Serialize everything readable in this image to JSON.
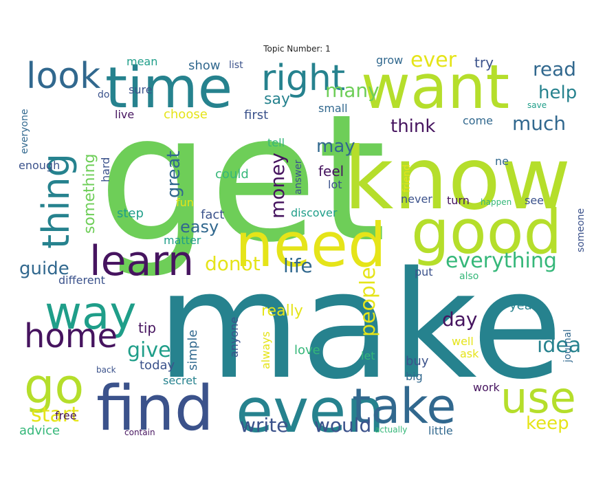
{
  "title": "Topic Number: 1",
  "palette": {
    "dark_purple": "#46145f",
    "indigo": "#3b528b",
    "blue": "#31688e",
    "teal": "#26828e",
    "green_teal": "#1f9e89",
    "green": "#35b779",
    "light_green": "#6ece58",
    "yellow_green": "#b5de2b",
    "yellow": "#e5e419"
  },
  "words": [
    {
      "text": "get",
      "color": "light_green",
      "rotate": 0
    },
    {
      "text": "make",
      "color": "teal",
      "rotate": 0
    },
    {
      "text": "know",
      "color": "yellow_green",
      "rotate": 0
    },
    {
      "text": "want",
      "color": "yellow_green",
      "rotate": 0
    },
    {
      "text": "good",
      "color": "yellow_green",
      "rotate": 0
    },
    {
      "text": "need",
      "color": "yellow",
      "rotate": 0
    },
    {
      "text": "time",
      "color": "teal",
      "rotate": 0
    },
    {
      "text": "find",
      "color": "indigo",
      "rotate": 0
    },
    {
      "text": "even",
      "color": "teal",
      "rotate": 0
    },
    {
      "text": "take",
      "color": "blue",
      "rotate": 0
    },
    {
      "text": "use",
      "color": "yellow_green",
      "rotate": 0
    },
    {
      "text": "way",
      "color": "green_teal",
      "rotate": 0
    },
    {
      "text": "go",
      "color": "yellow_green",
      "rotate": 0
    },
    {
      "text": "home",
      "color": "dark_purple",
      "rotate": 0
    },
    {
      "text": "learn",
      "color": "dark_purple",
      "rotate": 0
    },
    {
      "text": "look",
      "color": "blue",
      "rotate": 0
    },
    {
      "text": "right",
      "color": "teal",
      "rotate": 0
    },
    {
      "text": "thing",
      "color": "teal",
      "rotate": -90
    },
    {
      "text": "everything",
      "color": "green",
      "rotate": 0
    },
    {
      "text": "much",
      "color": "blue",
      "rotate": 0
    },
    {
      "text": "think",
      "color": "dark_purple",
      "rotate": 0
    },
    {
      "text": "read",
      "color": "blue",
      "rotate": 0
    },
    {
      "text": "help",
      "color": "teal",
      "rotate": 0
    },
    {
      "text": "ever",
      "color": "yellow",
      "rotate": 0
    },
    {
      "text": "many",
      "color": "light_green",
      "rotate": 0
    },
    {
      "text": "say",
      "color": "teal",
      "rotate": 0
    },
    {
      "text": "may",
      "color": "blue",
      "rotate": 0
    },
    {
      "text": "donot",
      "color": "yellow",
      "rotate": 0
    },
    {
      "text": "life",
      "color": "blue",
      "rotate": 0
    },
    {
      "text": "easy",
      "color": "blue",
      "rotate": 0
    },
    {
      "text": "guide",
      "color": "blue",
      "rotate": 0
    },
    {
      "text": "give",
      "color": "green_teal",
      "rotate": 0
    },
    {
      "text": "start",
      "color": "yellow",
      "rotate": 0
    },
    {
      "text": "write",
      "color": "indigo",
      "rotate": 0
    },
    {
      "text": "would",
      "color": "indigo",
      "rotate": 0
    },
    {
      "text": "day",
      "color": "dark_purple",
      "rotate": 0
    },
    {
      "text": "idea",
      "color": "teal",
      "rotate": 0
    },
    {
      "text": "keep",
      "color": "yellow",
      "rotate": 0
    },
    {
      "text": "people",
      "color": "yellow",
      "rotate": -90
    },
    {
      "text": "money",
      "color": "dark_purple",
      "rotate": -90
    },
    {
      "text": "great",
      "color": "blue",
      "rotate": -90
    },
    {
      "text": "something",
      "color": "light_green",
      "rotate": -90
    },
    {
      "text": "really",
      "color": "yellow",
      "rotate": 0
    },
    {
      "text": "feel",
      "color": "dark_purple",
      "rotate": 0
    },
    {
      "text": "tip",
      "color": "dark_purple",
      "rotate": 0
    },
    {
      "text": "show",
      "color": "blue",
      "rotate": 0
    },
    {
      "text": "list",
      "color": "indigo",
      "rotate": 0
    },
    {
      "text": "mean",
      "color": "green_teal",
      "rotate": 0
    },
    {
      "text": "grow",
      "color": "blue",
      "rotate": 0
    },
    {
      "text": "try",
      "color": "indigo",
      "rotate": 0
    },
    {
      "text": "sure",
      "color": "indigo",
      "rotate": 0
    },
    {
      "text": "do",
      "color": "indigo",
      "rotate": 0
    },
    {
      "text": "live",
      "color": "dark_purple",
      "rotate": 0
    },
    {
      "text": "choose",
      "color": "yellow",
      "rotate": 0
    },
    {
      "text": "first",
      "color": "indigo",
      "rotate": 0
    },
    {
      "text": "small",
      "color": "blue",
      "rotate": 0
    },
    {
      "text": "come",
      "color": "blue",
      "rotate": 0
    },
    {
      "text": "save",
      "color": "green_teal",
      "rotate": 0
    },
    {
      "text": "everyone",
      "color": "blue",
      "rotate": -90
    },
    {
      "text": "enough",
      "color": "indigo",
      "rotate": 0
    },
    {
      "text": "hard",
      "color": "indigo",
      "rotate": -90
    },
    {
      "text": "could",
      "color": "green",
      "rotate": 0
    },
    {
      "text": "tell",
      "color": "green",
      "rotate": 0
    },
    {
      "text": "lot",
      "color": "indigo",
      "rotate": 0
    },
    {
      "text": "answer",
      "color": "indigo",
      "rotate": -90
    },
    {
      "text": "friend",
      "color": "yellow",
      "rotate": -90
    },
    {
      "text": "ne",
      "color": "blue",
      "rotate": 0
    },
    {
      "text": "fun",
      "color": "yellow",
      "rotate": 0
    },
    {
      "text": "step",
      "color": "green_teal",
      "rotate": 0
    },
    {
      "text": "fact",
      "color": "indigo",
      "rotate": 0
    },
    {
      "text": "discover",
      "color": "green_teal",
      "rotate": 0
    },
    {
      "text": "never",
      "color": "indigo",
      "rotate": 0
    },
    {
      "text": "turn",
      "color": "dark_purple",
      "rotate": 0
    },
    {
      "text": "happen",
      "color": "green",
      "rotate": 0
    },
    {
      "text": "see",
      "color": "indigo",
      "rotate": 0
    },
    {
      "text": "someone",
      "color": "indigo",
      "rotate": -90
    },
    {
      "text": "matter",
      "color": "green_teal",
      "rotate": 0
    },
    {
      "text": "different",
      "color": "indigo",
      "rotate": 0
    },
    {
      "text": "put",
      "color": "indigo",
      "rotate": 0
    },
    {
      "text": "also",
      "color": "green",
      "rotate": 0
    },
    {
      "text": "year",
      "color": "teal",
      "rotate": 0
    },
    {
      "text": "journal",
      "color": "blue",
      "rotate": -90
    },
    {
      "text": "simple",
      "color": "blue",
      "rotate": -90
    },
    {
      "text": "anyone",
      "color": "indigo",
      "rotate": -90
    },
    {
      "text": "always",
      "color": "yellow",
      "rotate": -90
    },
    {
      "text": "love",
      "color": "green",
      "rotate": 0
    },
    {
      "text": "let",
      "color": "green",
      "rotate": 0
    },
    {
      "text": "buy",
      "color": "indigo",
      "rotate": 0
    },
    {
      "text": "big",
      "color": "blue",
      "rotate": 0
    },
    {
      "text": "well",
      "color": "yellow",
      "rotate": 0
    },
    {
      "text": "ask",
      "color": "yellow",
      "rotate": 0
    },
    {
      "text": "today",
      "color": "indigo",
      "rotate": 0
    },
    {
      "text": "back",
      "color": "indigo",
      "rotate": 0
    },
    {
      "text": "secret",
      "color": "teal",
      "rotate": 0
    },
    {
      "text": "free",
      "color": "dark_purple",
      "rotate": 0
    },
    {
      "text": "work",
      "color": "dark_purple",
      "rotate": 0
    },
    {
      "text": "advice",
      "color": "green",
      "rotate": 0
    },
    {
      "text": "contain",
      "color": "dark_purple",
      "rotate": 0
    },
    {
      "text": "actually",
      "color": "green",
      "rotate": 0
    },
    {
      "text": "little",
      "color": "blue",
      "rotate": 0
    }
  ]
}
